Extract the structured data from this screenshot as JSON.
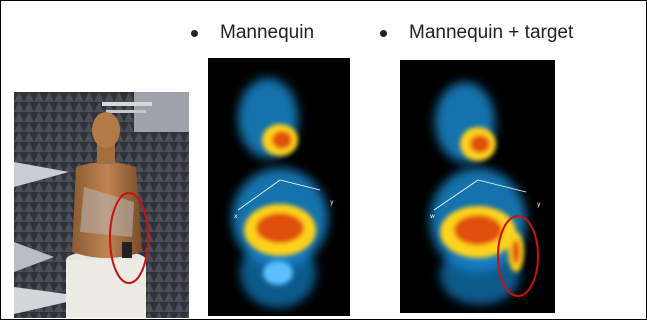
{
  "bullets": [
    {
      "label": "Mannequin"
    },
    {
      "label": "Mannequin + target"
    }
  ],
  "scans": [
    {
      "axis_x": "x",
      "axis_y": "y"
    },
    {
      "axis_x": "w",
      "axis_y": "y"
    }
  ],
  "colors": {
    "highlight_ellipse": "#cc1111",
    "scan_background": "#000000",
    "scan_hot": "#e05010",
    "scan_mid": "#ffd21a",
    "scan_cool": "#1aa8e8"
  }
}
